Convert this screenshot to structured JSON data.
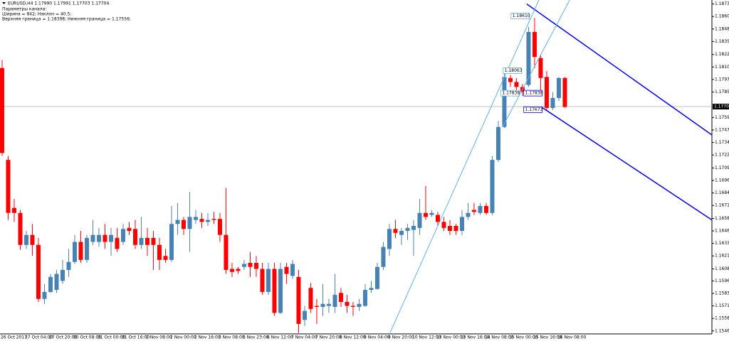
{
  "chart_data": {
    "type": "candlestick",
    "title": "EURUSD,H4 1.17990 1.17991 1.17703 1.17704",
    "annotations": [
      "Параметры канала:",
      "Ширина = 842; Наклон = 40.5;",
      "Верхняя граница = 1.18398; Нижняя граница = 1.17556;"
    ],
    "up_color": "#4682b4",
    "down_color": "#ff0000",
    "categories": [
      "26 Oct 2017",
      null,
      null,
      null,
      "27 Oct 04:00",
      null,
      null,
      null,
      "27 Oct 20:00",
      null,
      null,
      null,
      "30 Oct 08:00",
      null,
      null,
      null,
      "31 Oct 00:00",
      null,
      null,
      null,
      "31 Oct 16:00",
      null,
      null,
      null,
      "1 Nov 08:00",
      null,
      null,
      null,
      "2 Nov 00:00",
      null,
      null,
      null,
      "2 Nov 16:00",
      null,
      null,
      null,
      "3 Nov 08:00",
      null,
      null,
      null,
      "5 Nov 23:00",
      null,
      null,
      null,
      "6 Nov 12:00",
      null,
      null,
      null,
      "7 Nov 04:00",
      null,
      null,
      null,
      "7 Nov 20:00",
      null,
      null,
      null,
      "8 Nov 12:00",
      null,
      null,
      null,
      "9 Nov 04:00",
      null,
      null,
      null,
      "9 Nov 20:00",
      null,
      null,
      null,
      "10 Nov 12:00",
      null,
      null,
      null,
      "13 Nov 00:00",
      null,
      null,
      null,
      "13 Nov 16:00",
      null,
      null,
      null,
      "14 Nov 08:00",
      null,
      null,
      null,
      "15 Nov 00:00",
      null,
      null,
      null,
      "15 Nov 16:00",
      null,
      null,
      null,
      "16 Nov 08:00",
      null
    ],
    "open": [
      1.1809,
      1.1717,
      1.1669,
      1.1664,
      1.1632,
      1.1642,
      1.1632,
      1.1578,
      1.1585,
      1.1587,
      1.1596,
      1.1607,
      1.1615,
      1.1635,
      1.1617,
      1.1635,
      1.1635,
      1.1642,
      1.1635,
      1.1639,
      1.1635,
      1.1649,
      1.1648,
      1.1632,
      1.1639,
      1.1639,
      1.1632,
      1.1621,
      1.1617,
      1.1653,
      1.1657,
      1.1648,
      1.1657,
      1.1658,
      1.1655,
      1.1658,
      1.1658,
      1.1642,
      1.1608,
      1.1608,
      1.161,
      1.1614,
      1.1614,
      1.1608,
      1.1585,
      1.1608,
      1.1564,
      1.161,
      1.1601,
      1.16,
      1.1557,
      1.1589,
      1.1571,
      1.157,
      1.1571,
      1.157,
      1.1584,
      1.1575,
      1.1571,
      1.157,
      1.1571,
      1.1587,
      1.1588,
      1.161,
      1.1628,
      1.1648,
      1.1642,
      1.1646,
      1.1647,
      1.1649,
      1.1664,
      1.1662,
      1.1662,
      1.1655,
      1.1651,
      1.1651,
      1.1646,
      1.166,
      1.1667,
      1.1664,
      1.1671,
      1.1664,
      1.1717,
      1.175,
      1.1799,
      1.1795,
      1.179,
      1.1792,
      1.1845,
      1.1819,
      1.18,
      1.1769,
      1.1779,
      1.1799
    ],
    "high": [
      1.1817,
      1.1721,
      1.1678,
      1.1667,
      1.1646,
      1.1653,
      1.1639,
      1.1593,
      1.1603,
      1.1607,
      1.1617,
      1.1628,
      1.1642,
      1.1646,
      1.1642,
      1.1657,
      1.1649,
      1.1653,
      1.1649,
      1.1649,
      1.1653,
      1.1655,
      1.1657,
      1.166,
      1.1649,
      1.1646,
      1.1639,
      1.1628,
      1.1671,
      1.1674,
      1.166,
      1.1685,
      1.1667,
      1.1664,
      1.1664,
      1.1665,
      1.1664,
      1.1689,
      1.1614,
      1.161,
      1.1617,
      1.1625,
      1.1621,
      1.1614,
      1.1614,
      1.1614,
      1.1614,
      1.1614,
      1.1617,
      1.1607,
      1.1571,
      1.1594,
      1.1578,
      1.1593,
      1.1578,
      1.1603,
      1.1589,
      1.1582,
      1.1575,
      1.1578,
      1.1593,
      1.1596,
      1.1614,
      1.1635,
      1.1653,
      1.1657,
      1.1649,
      1.1653,
      1.1657,
      1.1678,
      1.1691,
      1.1667,
      1.1665,
      1.166,
      1.1657,
      1.1653,
      1.1667,
      1.1674,
      1.1674,
      1.1674,
      1.1674,
      1.1721,
      1.1756,
      1.1806,
      1.1802,
      1.1799,
      1.1793,
      1.185,
      1.1859,
      1.1822,
      1.1806,
      1.1785,
      1.18,
      1.18
    ],
    "low": [
      1.1721,
      1.1657,
      1.1655,
      1.1627,
      1.1628,
      1.1621,
      1.1575,
      1.1573,
      1.1584,
      1.1584,
      1.1593,
      1.16,
      1.1613,
      1.1614,
      1.1614,
      1.1632,
      1.163,
      1.1628,
      1.1621,
      1.1625,
      1.1632,
      1.1642,
      1.1628,
      1.1628,
      1.1621,
      1.1607,
      1.1607,
      1.1614,
      1.1615,
      1.1642,
      1.1642,
      1.1625,
      1.1653,
      1.1649,
      1.1651,
      1.1653,
      1.1635,
      1.1603,
      1.16,
      1.1603,
      1.1607,
      1.16,
      1.16,
      1.1582,
      1.1582,
      1.1561,
      1.1563,
      1.1593,
      1.1598,
      1.1544,
      1.1551,
      1.1564,
      1.1553,
      1.1561,
      1.1564,
      1.1564,
      1.157,
      1.1564,
      1.1561,
      1.1566,
      1.157,
      1.1584,
      1.1587,
      1.1607,
      1.1621,
      1.1639,
      1.1632,
      1.1637,
      1.1621,
      1.1642,
      1.1657,
      1.166,
      1.1651,
      1.1646,
      1.1642,
      1.1642,
      1.1642,
      1.1657,
      1.1662,
      1.1662,
      1.1662,
      1.1662,
      1.1715,
      1.1749,
      1.179,
      1.1786,
      1.1781,
      1.179,
      1.1809,
      1.1785,
      1.1767,
      1.1767,
      1.1776,
      1.1769
    ],
    "close": [
      1.1724,
      1.1664,
      1.1664,
      1.1632,
      1.1642,
      1.1632,
      1.1578,
      1.1585,
      1.16,
      1.1603,
      1.1607,
      1.1615,
      1.1635,
      1.1617,
      1.1639,
      1.1642,
      1.1642,
      1.1635,
      1.1642,
      1.1628,
      1.1648,
      1.1646,
      1.1632,
      1.1639,
      1.1632,
      1.1632,
      1.1617,
      1.1617,
      1.1653,
      1.1657,
      1.1648,
      1.166,
      1.166,
      1.1655,
      1.1657,
      1.1657,
      1.1642,
      1.1607,
      1.1605,
      1.1606,
      1.1613,
      1.161,
      1.1608,
      1.1585,
      1.1608,
      1.1564,
      1.1608,
      1.1603,
      1.1613,
      1.1553,
      1.1566,
      1.1568,
      1.157,
      1.1573,
      1.1573,
      1.1582,
      1.1575,
      1.1571,
      1.157,
      1.1573,
      1.1587,
      1.1589,
      1.161,
      1.163,
      1.1648,
      1.1644,
      1.1646,
      1.1649,
      1.1651,
      1.1664,
      1.166,
      1.1664,
      1.1655,
      1.1649,
      1.1646,
      1.1646,
      1.166,
      1.1664,
      1.1665,
      1.1671,
      1.1664,
      1.1717,
      1.175,
      1.18,
      1.1795,
      1.179,
      1.1785,
      1.1845,
      1.182,
      1.1799,
      1.1769,
      1.1779,
      1.1799,
      1.177
    ],
    "xlim": [
      -0.35,
      117.3
    ],
    "ylim": [
      1.1543,
      1.1877
    ],
    "yticks": [
      {
        "value": 1.1873,
        "label": "1.18730"
      },
      {
        "value": 1.18605,
        "label": "1.18605"
      },
      {
        "value": 1.1848,
        "label": "1.18480"
      },
      {
        "value": 1.18355,
        "label": "1.18355"
      },
      {
        "value": 1.18225,
        "label": "1.18225"
      },
      {
        "value": 1.181,
        "label": "1.18100"
      },
      {
        "value": 1.17975,
        "label": "1.17975"
      },
      {
        "value": 1.1785,
        "label": "1.17850"
      },
      {
        "value": 1.17595,
        "label": "1.17595"
      },
      {
        "value": 1.1747,
        "label": "1.17470"
      },
      {
        "value": 1.17345,
        "label": "1.17345"
      },
      {
        "value": 1.1722,
        "label": "1.17220"
      },
      {
        "value": 1.1709,
        "label": "1.17090"
      },
      {
        "value": 1.16965,
        "label": "1.16965"
      },
      {
        "value": 1.1684,
        "label": "1.16840"
      },
      {
        "value": 1.16715,
        "label": "1.16715"
      },
      {
        "value": 1.16585,
        "label": "1.16585"
      },
      {
        "value": 1.1646,
        "label": "1.16460"
      },
      {
        "value": 1.16335,
        "label": "1.16335"
      },
      {
        "value": 1.1621,
        "label": "1.16210"
      },
      {
        "value": 1.1608,
        "label": "1.16080"
      },
      {
        "value": 1.1596,
        "label": "1.15960"
      },
      {
        "value": 1.15835,
        "label": "1.15835"
      },
      {
        "value": 1.1571,
        "label": "1.15710"
      },
      {
        "value": 1.15585,
        "label": "1.15585"
      },
      {
        "value": 1.1546,
        "label": "1.15460"
      }
    ],
    "current_price": {
      "value": 1.17704,
      "label": "1.17704"
    },
    "price_labels": [
      {
        "index": 84.1,
        "value": 1.1861,
        "label": "1.18610",
        "color": "#5fb0ec"
      },
      {
        "index": 82.8,
        "value": 1.18063,
        "label": "1.18063",
        "color": "#5fb0ec"
      },
      {
        "index": 82.4,
        "value": 1.17838,
        "label": "1.17838",
        "color": "#5fb0ec"
      },
      {
        "index": 86.2,
        "value": 1.17838,
        "label": "1.17838",
        "color": "#0000ff"
      },
      {
        "index": 86.2,
        "value": 1.17673,
        "label": "1.17673",
        "color": "#0000ff"
      }
    ],
    "lines": [
      {
        "color": "#0000ff",
        "x": [
          86.7,
          117.3
        ],
        "y": [
          1.1873,
          1.1742
        ]
      },
      {
        "color": "#0000ff",
        "x": [
          89.1,
          117.3
        ],
        "y": [
          1.177,
          1.1657
        ]
      },
      {
        "color": "#5fb0ec",
        "x": [
          64.1,
          88.7
        ],
        "y": [
          1.1544,
          1.1877
        ]
      },
      {
        "color": "#5fb0ec",
        "x": [
          82.7,
          93.8
        ],
        "y": [
          1.175,
          1.1877
        ]
      }
    ]
  }
}
